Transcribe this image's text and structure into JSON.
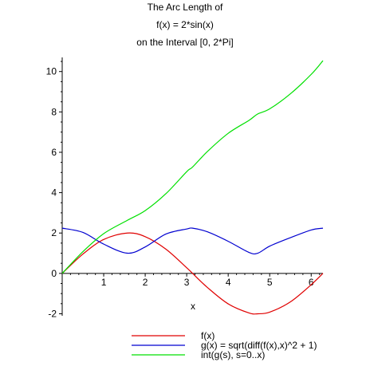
{
  "chart_data": {
    "type": "line",
    "title_lines": [
      "The Arc Length of",
      "f(x) = 2*sin(x)",
      "on the Interval [0, 2*Pi]"
    ],
    "xlabel": "x",
    "ylabel": "",
    "xlim": [
      0,
      6.2832
    ],
    "ylim": [
      -2.1,
      10.7
    ],
    "xticks": [
      1,
      2,
      3,
      4,
      5,
      6
    ],
    "yticks": [
      -2,
      0,
      2,
      4,
      6,
      8,
      10
    ],
    "grid": false,
    "legend_position": "bottom",
    "x": [
      0,
      0.5,
      1,
      1.5708,
      2,
      2.5,
      3,
      3.1416,
      3.5,
      4,
      4.5,
      4.7124,
      5,
      5.5,
      6,
      6.2832
    ],
    "series": [
      {
        "name": "f(x)",
        "color": "#e00000",
        "values": [
          0,
          0.96,
          1.68,
          2.0,
          1.82,
          1.2,
          0.28,
          0,
          -0.7,
          -1.51,
          -1.96,
          -2.0,
          -1.92,
          -1.41,
          -0.56,
          0
        ]
      },
      {
        "name": "g(x) = sqrt(diff(f(x),x)^2 + 1)",
        "color": "#0000d0",
        "values": [
          2.24,
          2.03,
          1.45,
          1.0,
          1.31,
          1.95,
          2.2,
          2.24,
          2.06,
          1.59,
          1.04,
          1.0,
          1.35,
          1.77,
          2.15,
          2.24
        ]
      },
      {
        "name": "int(g(s), s=0..x)",
        "color": "#00e000",
        "values": [
          0,
          1.08,
          1.97,
          2.63,
          3.11,
          3.95,
          5.04,
          5.27,
          6.04,
          6.94,
          7.58,
          7.9,
          8.15,
          8.9,
          9.86,
          10.54
        ]
      }
    ]
  }
}
